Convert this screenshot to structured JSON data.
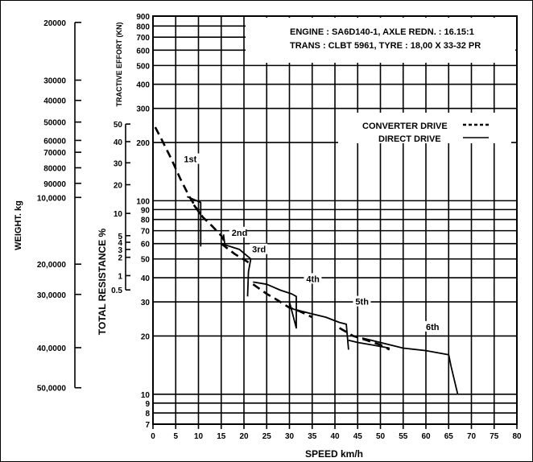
{
  "chart_data": {
    "type": "line",
    "xlabel": "SPEED km/h",
    "ylabel_tractive": "TRACTIVE EFFORT (KN)",
    "ylabel_resistance": "TOTAL RESISTANCE %",
    "ylabel_weight": "WEIGHT. kg",
    "x_scale": "linear",
    "y_scale": "log",
    "xlim": [
      0,
      80
    ],
    "ylim": [
      7,
      900
    ],
    "grid": true,
    "x_ticks": [
      "0",
      "5",
      "10",
      "15",
      "20",
      "25",
      "30",
      "35",
      "40",
      "45",
      "50",
      "55",
      "60",
      "65",
      "70",
      "75",
      "80"
    ],
    "tractive_ticks": [
      {
        "label": "900",
        "v": 900
      },
      {
        "label": "800",
        "v": 800
      },
      {
        "label": "700",
        "v": 700
      },
      {
        "label": "600",
        "v": 600
      },
      {
        "label": "500",
        "v": 500
      },
      {
        "label": "400",
        "v": 400
      },
      {
        "label": "300",
        "v": 300
      },
      {
        "label": "200",
        "v": 200
      },
      {
        "label": "100",
        "v": 100
      },
      {
        "label": "90",
        "v": 90
      },
      {
        "label": "80",
        "v": 80
      },
      {
        "label": "70",
        "v": 70
      },
      {
        "label": "60",
        "v": 60
      },
      {
        "label": "50",
        "v": 50
      },
      {
        "label": "40",
        "v": 40
      },
      {
        "label": "30",
        "v": 30
      },
      {
        "label": "20",
        "v": 20
      },
      {
        "label": "10",
        "v": 10
      },
      {
        "label": "9",
        "v": 9
      },
      {
        "label": "8",
        "v": 8
      },
      {
        "label": "7",
        "v": 7
      }
    ],
    "resistance_ticks": [
      {
        "label": "50",
        "v": 249
      },
      {
        "label": "40",
        "v": 202
      },
      {
        "label": "30",
        "v": 157
      },
      {
        "label": "20",
        "v": 121
      },
      {
        "label": "10",
        "v": 86
      },
      {
        "label": "5",
        "v": 66
      },
      {
        "label": "4",
        "v": 61
      },
      {
        "label": "3",
        "v": 56
      },
      {
        "label": "2",
        "v": 51
      },
      {
        "label": "1",
        "v": 41
      },
      {
        "label": "0.5",
        "v": 34.6
      }
    ],
    "weight_ticks": [
      {
        "label": "20000",
        "v": 835
      },
      {
        "label": "30000",
        "v": 420
      },
      {
        "label": "40000",
        "v": 330
      },
      {
        "label": "50000",
        "v": 255
      },
      {
        "label": "60000",
        "v": 205
      },
      {
        "label": "70000",
        "v": 178
      },
      {
        "label": "80000",
        "v": 148
      },
      {
        "label": "90000",
        "v": 123
      },
      {
        "label": "10,0000",
        "v": 104
      },
      {
        "label": "20,0000",
        "v": 47
      },
      {
        "label": "30,0000",
        "v": 32.8
      },
      {
        "label": "40,0000",
        "v": 17.4
      },
      {
        "label": "50,0000",
        "v": 10.8
      }
    ],
    "info_lines": [
      "ENGINE : SA6D140-1, AXLE REDN. : 16.15:1",
      "TRANS : CLBT 5961, TYRE : 18,00 X 33-32 PR"
    ],
    "legend": {
      "converter": "CONVERTER DRIVE",
      "direct": "DIRECT DRIVE"
    },
    "gear_labels": [
      {
        "name": "1st",
        "x": 6.8,
        "y": 158
      },
      {
        "name": "2nd",
        "x": 17.3,
        "y": 66
      },
      {
        "name": "3rd",
        "x": 21.8,
        "y": 54
      },
      {
        "name": "4th",
        "x": 33.7,
        "y": 38
      },
      {
        "name": "5th",
        "x": 44.5,
        "y": 29
      },
      {
        "name": "6th",
        "x": 60,
        "y": 21.5
      }
    ],
    "series": [
      {
        "name": "CONVERTER DRIVE",
        "gear": "1st",
        "x": [
          0.5,
          2,
          4,
          6,
          8,
          10,
          11
        ],
        "y": [
          240,
          205,
          165,
          130,
          105,
          88,
          82
        ]
      },
      {
        "name": "CONVERTER DRIVE",
        "gear": "2nd",
        "x": [
          9,
          11,
          13,
          15,
          16
        ],
        "y": [
          95,
          82,
          74,
          66,
          60
        ]
      },
      {
        "name": "CONVERTER DRIVE",
        "gear": "3rd",
        "x": [
          15,
          18,
          21
        ],
        "y": [
          60,
          53,
          48
        ]
      },
      {
        "name": "CONVERTER DRIVE",
        "gear": "4th",
        "x": [
          22,
          25,
          27,
          30,
          32,
          35
        ],
        "y": [
          37,
          33,
          31,
          28,
          27,
          25
        ]
      },
      {
        "name": "CONVERTER DRIVE",
        "gear": "5th",
        "x": [
          41,
          44,
          47,
          50,
          52
        ],
        "y": [
          22,
          20,
          19,
          18,
          17
        ]
      },
      {
        "name": "DIRECT DRIVE",
        "gear": "1st",
        "x": [
          7.5,
          10.5,
          10.5
        ],
        "y": [
          105,
          98,
          58
        ]
      },
      {
        "name": "DIRECT DRIVE",
        "gear": "2nd",
        "x": [
          15.5,
          15.8,
          16,
          19,
          21.5,
          21,
          20.8
        ],
        "y": [
          67,
          59,
          59,
          56,
          50,
          43,
          32
        ]
      },
      {
        "name": "DIRECT DRIVE",
        "gear": "3rd",
        "x": [
          22,
          25,
          28,
          30.5,
          31.5,
          31.5,
          30
        ],
        "y": [
          38,
          37,
          34.5,
          33,
          32,
          22,
          30
        ]
      },
      {
        "name": "DIRECT DRIVE",
        "gear": "4th",
        "x": [
          30,
          31,
          35,
          38,
          41,
          42.5,
          43
        ],
        "y": [
          28,
          27.5,
          26,
          25,
          23.5,
          23,
          17
        ]
      },
      {
        "name": "DIRECT DRIVE",
        "gear": "5th",
        "x": [
          43,
          45,
          48,
          52
        ],
        "y": [
          19,
          18.5,
          18,
          17.3
        ]
      },
      {
        "name": "DIRECT DRIVE",
        "gear": "6th",
        "x": [
          46,
          55,
          60,
          65,
          65.5,
          67
        ],
        "y": [
          19.5,
          17.3,
          16.8,
          16,
          14,
          10
        ]
      }
    ]
  }
}
